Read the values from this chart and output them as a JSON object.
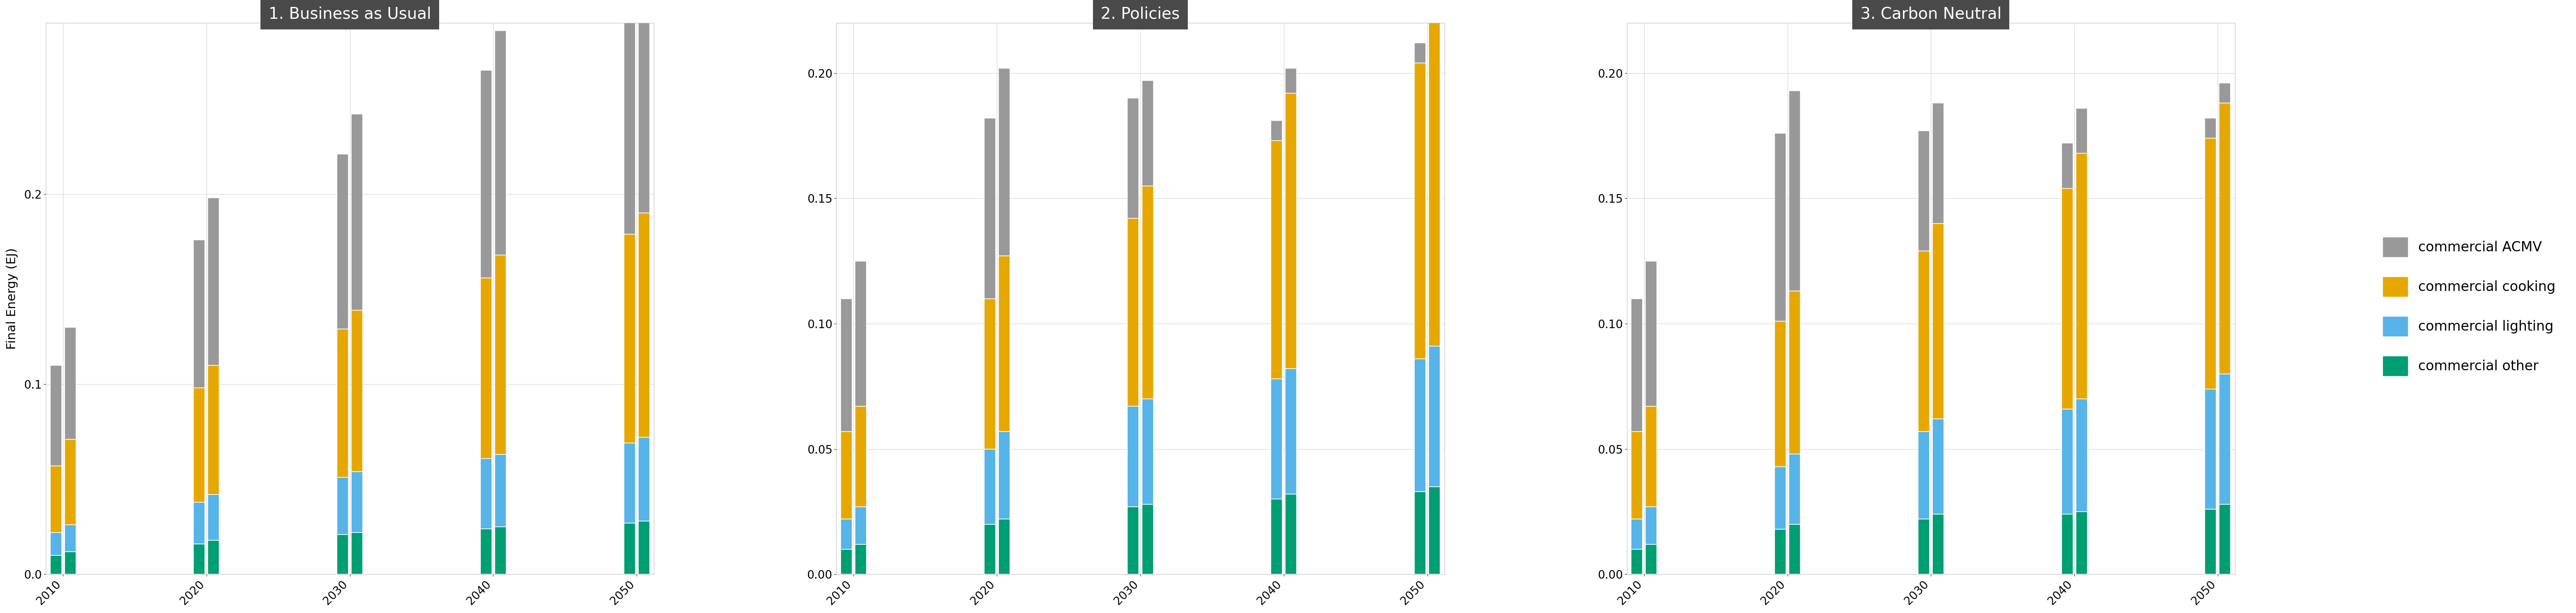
{
  "panels": [
    {
      "title": "1. Business as Usual",
      "years": [
        2010,
        2011,
        2020,
        2021,
        2030,
        2031,
        2040,
        2041,
        2050,
        2051
      ],
      "xtick_positions": [
        2010.5,
        2020.5,
        2030.5,
        2040.5,
        2050.5
      ],
      "xtick_labels": [
        "2010",
        "2020",
        "2030",
        "2040",
        "2050"
      ],
      "commercial_other": [
        0.01,
        0.012,
        0.016,
        0.018,
        0.021,
        0.022,
        0.024,
        0.025,
        0.027,
        0.028
      ],
      "commercial_lighting": [
        0.012,
        0.014,
        0.022,
        0.024,
        0.03,
        0.032,
        0.037,
        0.038,
        0.042,
        0.044
      ],
      "commercial_cooking": [
        0.035,
        0.045,
        0.06,
        0.068,
        0.078,
        0.085,
        0.095,
        0.105,
        0.11,
        0.118
      ],
      "commercial_acmv": [
        0.053,
        0.059,
        0.078,
        0.088,
        0.092,
        0.103,
        0.109,
        0.118,
        0.12,
        0.13
      ]
    },
    {
      "title": "2. Policies",
      "years": [
        2010,
        2011,
        2020,
        2021,
        2030,
        2031,
        2040,
        2041,
        2050,
        2051
      ],
      "xtick_positions": [
        2010.5,
        2020.5,
        2030.5,
        2040.5,
        2050.5
      ],
      "xtick_labels": [
        "2010",
        "2020",
        "2030",
        "2040",
        "2050"
      ],
      "commercial_other": [
        0.01,
        0.012,
        0.02,
        0.022,
        0.027,
        0.028,
        0.03,
        0.032,
        0.033,
        0.035
      ],
      "commercial_lighting": [
        0.012,
        0.015,
        0.03,
        0.035,
        0.04,
        0.042,
        0.048,
        0.05,
        0.053,
        0.056
      ],
      "commercial_cooking": [
        0.035,
        0.04,
        0.06,
        0.07,
        0.075,
        0.085,
        0.095,
        0.11,
        0.118,
        0.13
      ],
      "commercial_acmv": [
        0.053,
        0.058,
        0.072,
        0.075,
        0.048,
        0.042,
        0.008,
        0.01,
        0.008,
        0.008
      ]
    },
    {
      "title": "3. Carbon Neutral",
      "years": [
        2010,
        2011,
        2020,
        2021,
        2030,
        2031,
        2040,
        2041,
        2050,
        2051
      ],
      "xtick_positions": [
        2010.5,
        2020.5,
        2030.5,
        2040.5,
        2050.5
      ],
      "xtick_labels": [
        "2010",
        "2020",
        "2030",
        "2040",
        "2050"
      ],
      "commercial_other": [
        0.01,
        0.012,
        0.018,
        0.02,
        0.022,
        0.024,
        0.024,
        0.025,
        0.026,
        0.028
      ],
      "commercial_lighting": [
        0.012,
        0.015,
        0.025,
        0.028,
        0.035,
        0.038,
        0.042,
        0.045,
        0.048,
        0.052
      ],
      "commercial_cooking": [
        0.035,
        0.04,
        0.058,
        0.065,
        0.072,
        0.078,
        0.088,
        0.098,
        0.1,
        0.108
      ],
      "commercial_acmv": [
        0.053,
        0.058,
        0.075,
        0.08,
        0.048,
        0.048,
        0.018,
        0.018,
        0.008,
        0.008
      ]
    }
  ],
  "colors": {
    "commercial_acmv": "#999999",
    "commercial_cooking": "#E6A800",
    "commercial_lighting": "#56B4E9",
    "commercial_other": "#009E73"
  },
  "ylabel": "Final Energy (EJ)",
  "panel1_ylim": [
    0,
    0.29
  ],
  "panel1_yticks": [
    0.0,
    0.1,
    0.2
  ],
  "panel23_ylim": [
    0,
    0.22
  ],
  "panel23_yticks": [
    0.0,
    0.05,
    0.1,
    0.15,
    0.2
  ],
  "panel_title_bg": "#4a4a4a",
  "panel_title_color": "#ffffff",
  "background_color": "#ffffff",
  "grid_color": "#d0d0d0",
  "bar_width": 0.8,
  "title_fontsize": 28,
  "axis_fontsize": 22,
  "tick_fontsize": 20,
  "legend_fontsize": 24
}
